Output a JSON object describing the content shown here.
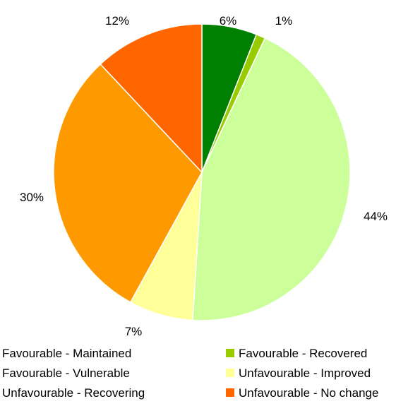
{
  "chart_data": {
    "type": "pie",
    "title": "",
    "legend_position": "bottom",
    "slices": [
      {
        "label": "Favourable - Maintained",
        "value": 6,
        "display": "6%",
        "color": "#008000"
      },
      {
        "label": "Favourable - Recovered",
        "value": 1,
        "display": "1%",
        "color": "#99cc00"
      },
      {
        "label": "Favourable - Vulnerable",
        "value": 44,
        "display": "44%",
        "color": "#ccff99"
      },
      {
        "label": "Unfavourable - Improved",
        "value": 7,
        "display": "7%",
        "color": "#ffff99"
      },
      {
        "label": "Unfavourable - Recovering",
        "value": 30,
        "display": "30%",
        "color": "#ff9900"
      },
      {
        "label": "Unfavourable - No change",
        "value": 12,
        "display": "12%",
        "color": "#ff6600"
      }
    ]
  }
}
